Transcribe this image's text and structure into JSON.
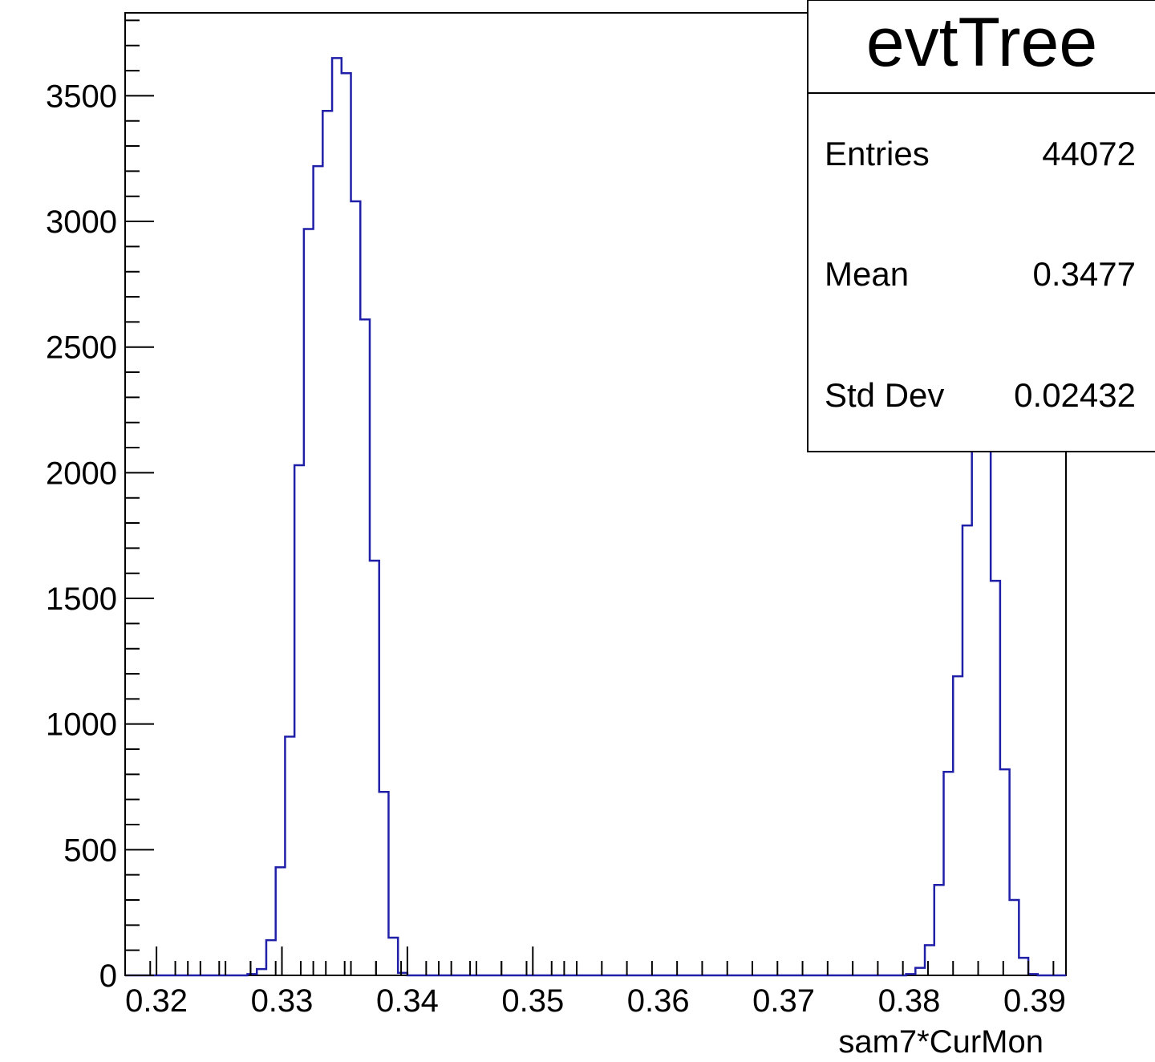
{
  "chart_data": {
    "type": "bar",
    "title": "",
    "xlabel": "sam7*CurMon",
    "ylabel": "",
    "xlim": [
      0.3175,
      0.3925
    ],
    "ylim": [
      0,
      3830
    ],
    "x_ticks": [
      0.32,
      0.33,
      0.34,
      0.35,
      0.36,
      0.37,
      0.38,
      0.39
    ],
    "x_tick_labels": [
      "0.32",
      "0.33",
      "0.34",
      "0.35",
      "0.36",
      "0.37",
      "0.38",
      "0.39"
    ],
    "y_ticks": [
      0,
      500,
      1000,
      1500,
      2000,
      2500,
      3000,
      3500
    ],
    "y_tick_labels": [
      "0",
      "500",
      "1000",
      "1500",
      "2000",
      "2500",
      "3000",
      "3500"
    ],
    "bin_edges_start": 0.3175,
    "bin_width": 0.00075,
    "values": [
      0,
      0,
      0,
      0,
      0,
      0,
      0,
      0,
      0,
      0,
      0,
      0,
      0,
      5,
      25,
      140,
      430,
      950,
      2030,
      2970,
      3220,
      3440,
      3650,
      3590,
      3080,
      2610,
      1650,
      730,
      150,
      10,
      0,
      0,
      0,
      0,
      0,
      0,
      0,
      0,
      0,
      0,
      0,
      0,
      0,
      0,
      0,
      0,
      0,
      0,
      0,
      0,
      0,
      0,
      0,
      0,
      0,
      0,
      0,
      0,
      0,
      0,
      0,
      0,
      0,
      0,
      0,
      0,
      0,
      0,
      0,
      0,
      0,
      0,
      0,
      0,
      0,
      0,
      0,
      0,
      0,
      0,
      0,
      0,
      0,
      5,
      30,
      120,
      360,
      810,
      1190,
      1790,
      2360,
      2830,
      1570,
      820,
      300,
      70,
      5,
      0,
      0,
      0
    ],
    "series": [
      {
        "name": "",
        "color": "#1f1fa8"
      }
    ],
    "grid": false,
    "legend": "none",
    "stats_box": {
      "title": "evtTree",
      "rows": [
        {
          "label": "Entries",
          "value": "44072"
        },
        {
          "label": "Mean",
          "value": "0.3477"
        },
        {
          "label": "Std Dev",
          "value": "0.02432"
        }
      ],
      "position": "top-right"
    }
  }
}
